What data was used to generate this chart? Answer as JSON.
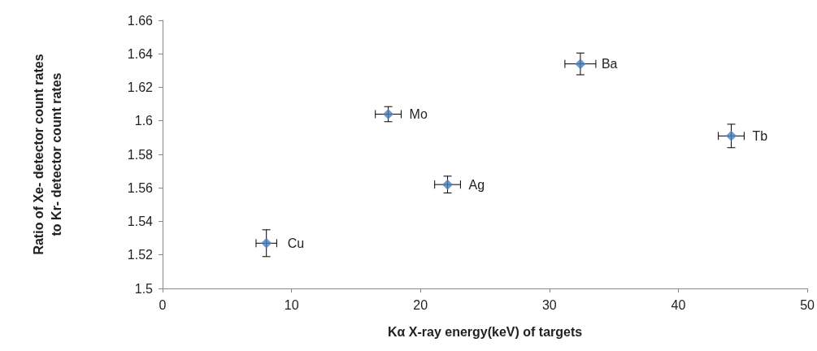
{
  "chart_data": {
    "type": "scatter",
    "xlabel": "Kα X-ray energy(keV) of targets",
    "ylabel": "Ratio of Xe- detector count rates\nto Kr- detector count rates",
    "x": [
      8.05,
      17.5,
      22.1,
      32.4,
      44.1
    ],
    "series": [
      {
        "color": "#4a7ebb",
        "values": [
          1.527,
          1.604,
          1.562,
          1.634,
          1.591
        ],
        "errors": [
          0.008,
          0.0045,
          0.005,
          0.0065,
          0.007
        ],
        "xerrors": [
          0.8,
          1.0,
          1.0,
          1.2,
          1.0
        ]
      }
    ],
    "marker": "diamond",
    "xlim": [
      0,
      50
    ],
    "xticks": [
      0,
      10,
      20,
      30,
      40,
      50
    ],
    "ylim": [
      1.5,
      1.66
    ],
    "yticks": [
      1.5,
      1.52,
      1.54,
      1.56,
      1.58,
      1.6,
      1.62,
      1.64,
      1.66
    ],
    "grid": false,
    "annotations": [
      {
        "text": "Cu",
        "x": 8.05,
        "y": 1.527
      },
      {
        "text": "Mo",
        "x": 17.5,
        "y": 1.604
      },
      {
        "text": "Ag",
        "x": 22.1,
        "y": 1.562
      },
      {
        "text": "Ba",
        "x": 32.4,
        "y": 1.634
      },
      {
        "text": "Tb",
        "x": 44.1,
        "y": 1.591
      }
    ]
  }
}
